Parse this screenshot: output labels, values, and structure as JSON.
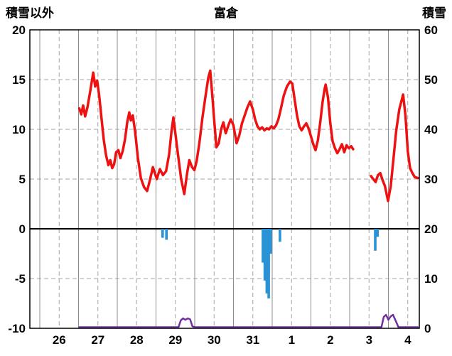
{
  "chart_data": {
    "type": "line",
    "title": "富倉",
    "left_axis": {
      "title": "積雪以外",
      "min": -10,
      "max": 20,
      "ticks": [
        20,
        15,
        10,
        5,
        0,
        -5,
        -10
      ]
    },
    "right_axis": {
      "title": "積雪",
      "min": 0,
      "max": 60,
      "ticks": [
        60,
        50,
        40,
        30,
        20,
        10,
        0
      ]
    },
    "x_axis": {
      "labels": [
        "26",
        "27",
        "28",
        "29",
        "30",
        "31",
        "1",
        "2",
        "3",
        "4"
      ]
    },
    "grid": {
      "solid_color": "#8c8c8c",
      "dashed_color": "#a6a6a6",
      "frame_color": "#000000",
      "zero_line_color": "#000000"
    },
    "series": [
      {
        "name": "temperature-line",
        "type": "line",
        "axis": "left",
        "color": "#ee1111",
        "points": [
          [
            1.02,
            12.1
          ],
          [
            1.07,
            11.5
          ],
          [
            1.12,
            12.4
          ],
          [
            1.17,
            11.3
          ],
          [
            1.23,
            12.2
          ],
          [
            1.3,
            13.8
          ],
          [
            1.38,
            15.7
          ],
          [
            1.43,
            14.3
          ],
          [
            1.48,
            14.9
          ],
          [
            1.53,
            13.5
          ],
          [
            1.59,
            11.2
          ],
          [
            1.65,
            9.0
          ],
          [
            1.71,
            7.4
          ],
          [
            1.77,
            6.4
          ],
          [
            1.82,
            6.9
          ],
          [
            1.87,
            6.1
          ],
          [
            1.92,
            6.5
          ],
          [
            1.97,
            7.7
          ],
          [
            2.03,
            7.9
          ],
          [
            2.08,
            7.1
          ],
          [
            2.14,
            7.8
          ],
          [
            2.2,
            9.0
          ],
          [
            2.26,
            10.8
          ],
          [
            2.31,
            11.7
          ],
          [
            2.35,
            10.9
          ],
          [
            2.4,
            11.4
          ],
          [
            2.46,
            9.8
          ],
          [
            2.53,
            7.2
          ],
          [
            2.61,
            5.1
          ],
          [
            2.69,
            4.2
          ],
          [
            2.77,
            3.8
          ],
          [
            2.85,
            5.0
          ],
          [
            2.92,
            6.2
          ],
          [
            3.02,
            5.0
          ],
          [
            3.1,
            6.0
          ],
          [
            3.18,
            5.4
          ],
          [
            3.26,
            5.8
          ],
          [
            3.34,
            7.5
          ],
          [
            3.4,
            9.8
          ],
          [
            3.45,
            11.2
          ],
          [
            3.55,
            8.0
          ],
          [
            3.65,
            5.0
          ],
          [
            3.73,
            3.5
          ],
          [
            3.8,
            5.5
          ],
          [
            3.86,
            6.9
          ],
          [
            3.93,
            6.2
          ],
          [
            3.99,
            5.9
          ],
          [
            4.05,
            6.8
          ],
          [
            4.12,
            8.6
          ],
          [
            4.2,
            11.2
          ],
          [
            4.28,
            13.4
          ],
          [
            4.35,
            15.2
          ],
          [
            4.4,
            15.9
          ],
          [
            4.45,
            13.6
          ],
          [
            4.5,
            11.0
          ],
          [
            4.56,
            8.2
          ],
          [
            4.62,
            8.6
          ],
          [
            4.68,
            10.0
          ],
          [
            4.74,
            10.7
          ],
          [
            4.8,
            9.6
          ],
          [
            4.87,
            10.4
          ],
          [
            4.93,
            11.0
          ],
          [
            5.0,
            10.4
          ],
          [
            5.08,
            8.6
          ],
          [
            5.15,
            9.4
          ],
          [
            5.22,
            10.6
          ],
          [
            5.3,
            11.5
          ],
          [
            5.36,
            12.2
          ],
          [
            5.43,
            12.8
          ],
          [
            5.5,
            12.0
          ],
          [
            5.56,
            11.0
          ],
          [
            5.62,
            10.3
          ],
          [
            5.68,
            10.0
          ],
          [
            5.74,
            10.2
          ],
          [
            5.8,
            9.9
          ],
          [
            5.86,
            10.1
          ],
          [
            5.92,
            10.0
          ],
          [
            5.98,
            10.3
          ],
          [
            6.04,
            10.1
          ],
          [
            6.1,
            10.4
          ],
          [
            6.16,
            11.0
          ],
          [
            6.22,
            12.0
          ],
          [
            6.3,
            13.4
          ],
          [
            6.38,
            14.3
          ],
          [
            6.46,
            14.8
          ],
          [
            6.52,
            14.6
          ],
          [
            6.58,
            13.0
          ],
          [
            6.64,
            11.4
          ],
          [
            6.7,
            10.3
          ],
          [
            6.76,
            9.9
          ],
          [
            6.82,
            10.3
          ],
          [
            6.88,
            10.6
          ],
          [
            6.94,
            10.1
          ],
          [
            7.0,
            9.3
          ],
          [
            7.06,
            8.5
          ],
          [
            7.12,
            7.9
          ],
          [
            7.18,
            8.9
          ],
          [
            7.24,
            10.7
          ],
          [
            7.3,
            12.7
          ],
          [
            7.35,
            14.0
          ],
          [
            7.38,
            14.5
          ],
          [
            7.44,
            13.2
          ],
          [
            7.5,
            10.6
          ],
          [
            7.56,
            8.8
          ],
          [
            7.62,
            8.1
          ],
          [
            7.68,
            7.6
          ],
          [
            7.74,
            8.0
          ],
          [
            7.8,
            8.5
          ],
          [
            7.86,
            7.7
          ],
          [
            7.92,
            8.4
          ],
          [
            7.98,
            8.1
          ],
          [
            8.04,
            8.3
          ],
          [
            8.09,
            8.0
          ],
          null,
          [
            8.55,
            5.3
          ],
          [
            8.61,
            5.0
          ],
          [
            8.67,
            4.7
          ],
          [
            8.73,
            5.4
          ],
          [
            8.79,
            5.6
          ],
          [
            8.85,
            4.9
          ],
          [
            8.91,
            4.3
          ],
          [
            8.99,
            2.8
          ],
          [
            9.06,
            4.3
          ],
          [
            9.13,
            7.0
          ],
          [
            9.2,
            9.8
          ],
          [
            9.28,
            12.0
          ],
          [
            9.38,
            13.5
          ],
          [
            9.44,
            11.4
          ],
          [
            9.5,
            7.8
          ],
          [
            9.56,
            6.1
          ],
          [
            9.62,
            5.6
          ],
          [
            9.68,
            5.2
          ],
          [
            9.76,
            5.1
          ]
        ]
      },
      {
        "name": "precipitation-bars",
        "type": "bar",
        "axis": "left-downward-from-zero",
        "color": "#2a93d5",
        "points": [
          [
            3.17,
            0.9
          ],
          [
            3.27,
            1.1
          ],
          [
            5.76,
            3.4
          ],
          [
            5.81,
            5.2
          ],
          [
            5.86,
            6.5
          ],
          [
            5.91,
            7.0
          ],
          [
            5.96,
            2.5
          ],
          [
            6.2,
            1.3
          ],
          [
            8.66,
            2.2
          ],
          [
            8.72,
            0.8
          ]
        ]
      },
      {
        "name": "snow-depth-line",
        "type": "line",
        "axis": "right",
        "color": "#7030a0",
        "points": [
          [
            1.02,
            0
          ],
          [
            3.58,
            0
          ],
          [
            3.64,
            1.6
          ],
          [
            3.7,
            2.0
          ],
          [
            3.76,
            1.7
          ],
          [
            3.82,
            2.0
          ],
          [
            3.88,
            1.8
          ],
          [
            3.94,
            0.4
          ],
          [
            4.0,
            0
          ],
          [
            8.82,
            0
          ],
          [
            8.88,
            2.3
          ],
          [
            8.94,
            2.7
          ],
          [
            9.0,
            1.7
          ],
          [
            9.06,
            2.4
          ],
          [
            9.12,
            2.7
          ],
          [
            9.2,
            1.3
          ],
          [
            9.26,
            0
          ],
          [
            9.76,
            0
          ]
        ]
      }
    ],
    "layout": {
      "plot_left": 42,
      "plot_right": 590,
      "plot_top": 42,
      "plot_bottom": 462,
      "day_origin_x": 56,
      "day_width": 54.5
    }
  }
}
